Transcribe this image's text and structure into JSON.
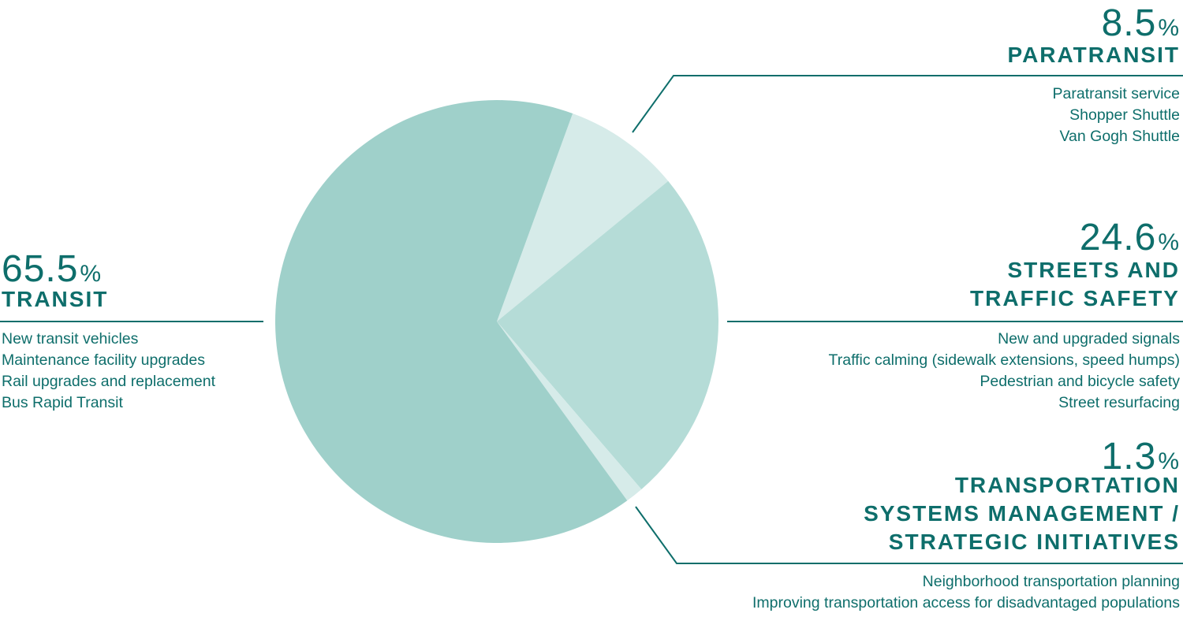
{
  "chart_data": {
    "type": "pie",
    "slices": [
      {
        "label": "PARATRANSIT",
        "value": 8.5,
        "display_value": "8.5",
        "color": "#d6ebe9",
        "items": [
          "Paratransit service",
          "Shopper Shuttle",
          "Van Gogh Shuttle"
        ]
      },
      {
        "label": "STREETS AND TRAFFIC SAFETY",
        "label_lines": [
          "STREETS AND",
          "TRAFFIC SAFETY"
        ],
        "value": 24.6,
        "display_value": "24.6",
        "color": "#b5dcd7",
        "items": [
          "New and upgraded signals",
          "Traffic calming (sidewalk extensions, speed humps)",
          "Pedestrian and bicycle safety",
          "Street resurfacing"
        ]
      },
      {
        "label": "TRANSPORTATION SYSTEMS MANAGEMENT / STRATEGIC INITIATIVES",
        "label_lines": [
          "TRANSPORTATION",
          "SYSTEMS MANAGEMENT /",
          "STRATEGIC INITIATIVES"
        ],
        "value": 1.3,
        "display_value": "1.3",
        "color": "#d6ebe9",
        "items": [
          "Neighborhood transportation planning",
          "Improving transportation access for disadvantaged populations"
        ]
      },
      {
        "label": "TRANSIT",
        "value": 65.5,
        "display_value": "65.5",
        "color": "#9fd0ca",
        "items": [
          "New transit vehicles",
          "Maintenance facility upgrades",
          "Rail upgrades and replacement",
          "Bus Rapid Transit"
        ]
      }
    ],
    "percent_symbol": "%",
    "text_color": "#0e6e6b",
    "line_color": "#0e6e6b"
  }
}
